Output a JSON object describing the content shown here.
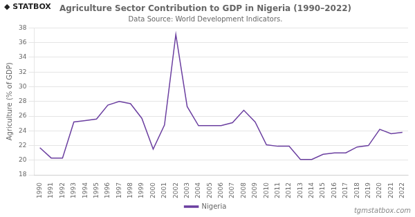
{
  "chart_data": {
    "type": "line",
    "title": "Agriculture Sector Contribution to GDP in Nigeria (1990–2022)",
    "subtitle": "Data Source: World Development Indicators.",
    "y_label": "Agriculture (% of GDP)",
    "annotations": [
      "◆ STATBOX",
      "tgmstatbox.com"
    ],
    "x": [
      1990,
      1991,
      1992,
      1993,
      1994,
      1995,
      1996,
      1997,
      1998,
      1999,
      2000,
      2001,
      2002,
      2003,
      2004,
      2005,
      2006,
      2007,
      2008,
      2009,
      2010,
      2011,
      2012,
      2013,
      2014,
      2015,
      2016,
      2017,
      2018,
      2019,
      2020,
      2021,
      2022
    ],
    "series": [
      {
        "name": "Nigeria",
        "color": "#6b3fa0",
        "values": [
          21.7,
          20.3,
          20.3,
          25.2,
          25.4,
          25.6,
          27.5,
          28.0,
          27.7,
          25.7,
          21.5,
          24.8,
          37.1,
          27.3,
          24.7,
          24.7,
          24.7,
          25.1,
          26.8,
          25.2,
          22.1,
          21.9,
          21.9,
          20.1,
          20.1,
          20.8,
          21.0,
          21.0,
          21.8,
          22.0,
          24.2,
          23.6,
          23.8
        ]
      }
    ],
    "xlim": [
      1989.5,
      2022.5
    ],
    "xticks": [
      1990,
      1991,
      1992,
      1993,
      1994,
      1995,
      1996,
      1997,
      1998,
      1999,
      2000,
      2001,
      2002,
      2003,
      2004,
      2005,
      2006,
      2007,
      2008,
      2009,
      2010,
      2011,
      2012,
      2013,
      2014,
      2015,
      2016,
      2017,
      2018,
      2019,
      2020,
      2021,
      2022
    ],
    "ylim": [
      18,
      38
    ],
    "yticks": [
      18,
      20,
      22,
      24,
      26,
      28,
      30,
      32,
      34,
      36,
      38
    ],
    "grid": true,
    "legend": "bottom"
  }
}
